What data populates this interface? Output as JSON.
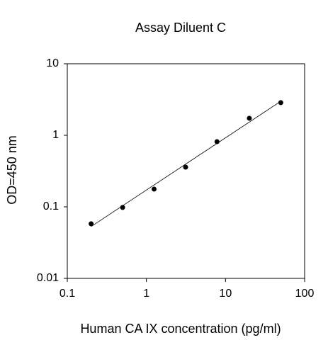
{
  "chart_data": {
    "type": "scatter",
    "title": "Assay Diluent C",
    "xlabel": "Human CA IX concentration (pg/ml)",
    "ylabel": "OD=450 nm",
    "xlog": true,
    "ylog": true,
    "xlim": [
      0.1,
      100
    ],
    "ylim": [
      0.01,
      10
    ],
    "xticks": [
      0.1,
      1,
      10,
      100
    ],
    "yticks": [
      0.01,
      0.1,
      1,
      10
    ],
    "series": [
      {
        "mode": "markers",
        "color": "#000000",
        "x": [
          0.2,
          0.5,
          1.25,
          3.13,
          7.8,
          20,
          50
        ],
        "values": [
          0.058,
          0.098,
          0.177,
          0.358,
          0.815,
          1.73,
          2.86
        ]
      },
      {
        "mode": "line",
        "color": "#000000",
        "x": [
          0.2,
          50
        ],
        "values": [
          0.053,
          2.99
        ]
      }
    ]
  }
}
